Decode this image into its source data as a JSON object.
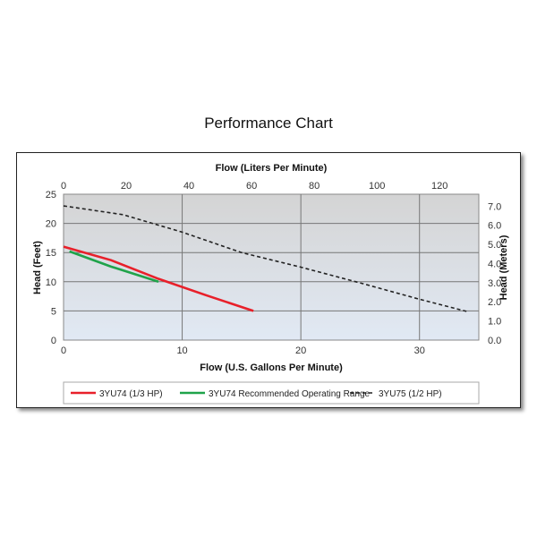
{
  "title": "Performance Chart",
  "chart_data": {
    "type": "line",
    "xlabel": "Flow (U.S. Gallons Per Minute)",
    "x2label": "Flow (Liters Per Minute)",
    "ylabel": "Head (Feet)",
    "y2label": "Head (Meters)",
    "xlim": [
      0,
      35
    ],
    "x2lim": [
      0,
      132.5
    ],
    "ylim": [
      0,
      25
    ],
    "y2lim": [
      0,
      7.62
    ],
    "x_ticks": [
      0,
      10,
      20,
      30
    ],
    "x2_ticks": [
      0,
      20,
      40,
      60,
      80,
      100,
      120
    ],
    "y_ticks": [
      0,
      5,
      10,
      15,
      20,
      25
    ],
    "y2_ticks": [
      "0.0",
      "1.0",
      "2.0",
      "3.0",
      "4.0",
      "5.0",
      "6.0",
      "7.0"
    ],
    "grid": true,
    "legend_position": "bottom",
    "series": [
      {
        "name": "3YU74 (1/3 HP)",
        "color": "#e8202a",
        "style": "solid",
        "x": [
          0,
          4,
          8,
          12,
          16
        ],
        "y": [
          16,
          13.7,
          10.5,
          7.7,
          5
        ]
      },
      {
        "name": "3YU74 Recommended Operating Range",
        "color": "#1fa34a",
        "style": "solid",
        "x": [
          0.5,
          4,
          8
        ],
        "y": [
          15.2,
          12.6,
          10
        ]
      },
      {
        "name": "3YU75 (1/2 HP)",
        "color": "#222222",
        "style": "dashed",
        "x": [
          0,
          5,
          10,
          15,
          20,
          25,
          30,
          34
        ],
        "y": [
          23,
          21.5,
          18.5,
          15,
          12.5,
          9.8,
          7,
          4.9
        ]
      }
    ]
  }
}
